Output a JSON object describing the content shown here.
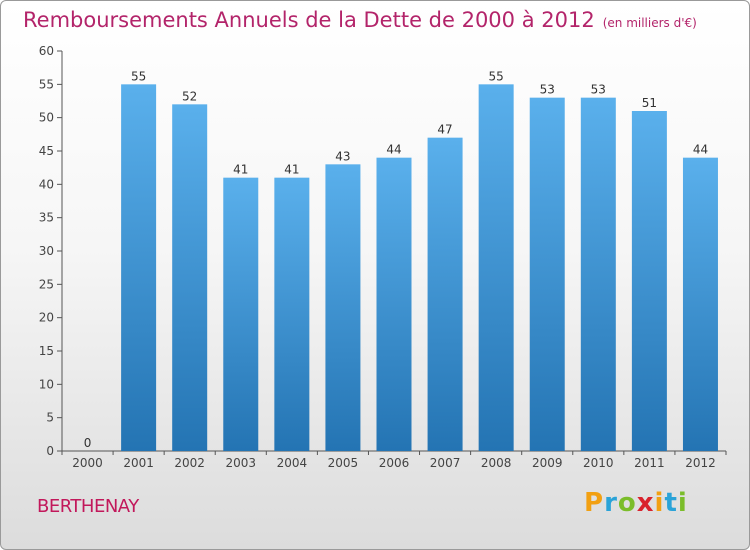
{
  "chart_data": {
    "type": "bar",
    "title": "Remboursements Annuels de la Dette de 2000 à 2012",
    "unit_label": "(en milliers d'€)",
    "categories": [
      "2000",
      "2001",
      "2002",
      "2003",
      "2004",
      "2005",
      "2006",
      "2007",
      "2008",
      "2009",
      "2010",
      "2011",
      "2012"
    ],
    "values": [
      0,
      55,
      52,
      41,
      41,
      43,
      44,
      47,
      55,
      53,
      53,
      51,
      44
    ],
    "y_ticks": [
      0,
      5,
      10,
      15,
      20,
      25,
      30,
      35,
      40,
      45,
      50,
      55,
      60
    ],
    "ylim": [
      0,
      60
    ],
    "grid": false,
    "xlabel": "",
    "ylabel": ""
  },
  "location": "BERTHENAY",
  "logo": {
    "letters": [
      "P",
      "r",
      "o",
      "x",
      "i",
      "t",
      "i"
    ],
    "colors": [
      "#f2a012",
      "#2aa3d8",
      "#7bbd2a",
      "#d9232d",
      "#f2a012",
      "#2aa3d8",
      "#7bbd2a"
    ]
  },
  "colors": {
    "title": "#b3246a",
    "bar_top": "#5ab0ec",
    "bar_bottom": "#2474b3"
  }
}
